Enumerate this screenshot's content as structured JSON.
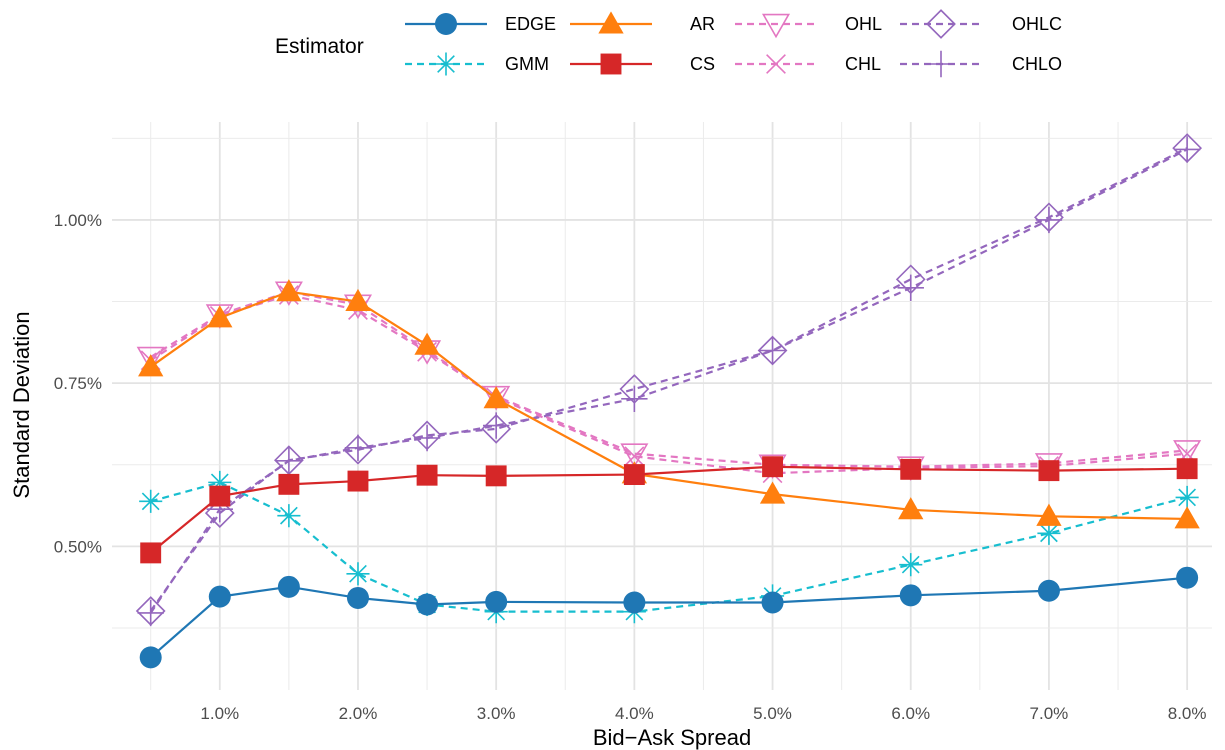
{
  "chart_data": {
    "type": "line",
    "xlabel": "Bid−Ask Spread",
    "ylabel": "Standard Deviation",
    "legend_title": "Estimator",
    "legend_position": "top",
    "grid": true,
    "x": [
      0.5,
      1.0,
      1.5,
      2.0,
      2.5,
      3.0,
      4.0,
      5.0,
      6.0,
      7.0,
      8.0
    ],
    "x_ticks": [
      1,
      2,
      3,
      4,
      5,
      6,
      7,
      8
    ],
    "x_tick_labels": [
      "1.0%",
      "2.0%",
      "3.0%",
      "4.0%",
      "5.0%",
      "6.0%",
      "7.0%",
      "8.0%"
    ],
    "y_ticks": [
      0.5,
      0.75,
      1.0
    ],
    "y_tick_labels": [
      "0.50%",
      "0.75%",
      "1.00%"
    ],
    "xlim": [
      0.22,
      8.18
    ],
    "ylim": [
      0.28,
      1.15
    ],
    "series": [
      {
        "name": "EDGE",
        "color": "#1f77b4",
        "dash": "solid",
        "marker": "circle",
        "values": [
          0.33,
          0.423,
          0.438,
          0.421,
          0.411,
          0.415,
          0.414,
          0.414,
          0.425,
          0.432,
          0.452
        ]
      },
      {
        "name": "GMM",
        "color": "#17becf",
        "dash": "dashed",
        "marker": "asterisk",
        "values": [
          0.569,
          0.598,
          0.547,
          0.458,
          0.411,
          0.4,
          0.4,
          0.424,
          0.472,
          0.52,
          0.575
        ]
      },
      {
        "name": "AR",
        "color": "#ff7f0e",
        "dash": "solid",
        "marker": "triangle",
        "values": [
          0.775,
          0.85,
          0.89,
          0.875,
          0.808,
          0.726,
          0.611,
          0.58,
          0.556,
          0.546,
          0.542
        ]
      },
      {
        "name": "CS",
        "color": "#d62728",
        "dash": "solid",
        "marker": "square",
        "values": [
          0.49,
          0.577,
          0.595,
          0.6,
          0.609,
          0.608,
          0.61,
          0.622,
          0.618,
          0.616,
          0.619
        ]
      },
      {
        "name": "OHL",
        "color": "#e377c2",
        "dash": "dashed",
        "marker": "triangle-down-open",
        "values": [
          0.79,
          0.855,
          0.89,
          0.87,
          0.8,
          0.73,
          0.642,
          0.625,
          0.622,
          0.627,
          0.647
        ]
      },
      {
        "name": "CHL",
        "color": "#e377c2",
        "dash": "dashed",
        "marker": "x",
        "values": [
          0.785,
          0.853,
          0.885,
          0.862,
          0.798,
          0.728,
          0.638,
          0.612,
          0.62,
          0.623,
          0.642
        ]
      },
      {
        "name": "OHLC",
        "color": "#9467bd",
        "dash": "dashed",
        "marker": "diamond-open",
        "values": [
          0.401,
          0.551,
          0.632,
          0.648,
          0.67,
          0.68,
          0.741,
          0.8,
          0.909,
          1.004,
          1.11
        ]
      },
      {
        "name": "CHLO",
        "color": "#9467bd",
        "dash": "dashed",
        "marker": "plus",
        "values": [
          0.398,
          0.557,
          0.631,
          0.651,
          0.666,
          0.685,
          0.726,
          0.8,
          0.896,
          1.0,
          1.108
        ]
      }
    ]
  }
}
